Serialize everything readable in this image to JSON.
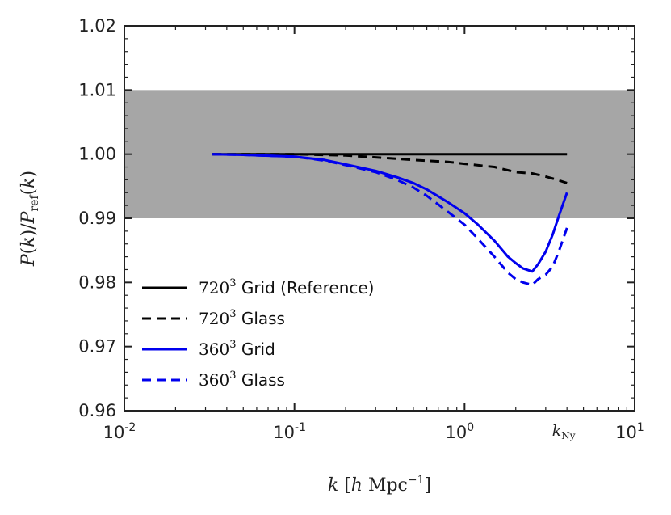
{
  "chart_data": {
    "type": "line",
    "title": "",
    "xlabel": "k [h Mpc^-1]",
    "ylabel": "P(k)/P_ref(k)",
    "xscale": "log",
    "xlim": [
      0.01,
      10
    ],
    "ylim": [
      0.96,
      1.02
    ],
    "x_ticks": [
      {
        "value": 0.01,
        "base": "10",
        "exp": "-2"
      },
      {
        "value": 0.1,
        "base": "10",
        "exp": "-1"
      },
      {
        "value": 1,
        "base": "10",
        "exp": "0"
      },
      {
        "value": 10,
        "base": "10",
        "exp": "1"
      }
    ],
    "y_ticks": [
      {
        "value": 0.96,
        "label": "0.96"
      },
      {
        "value": 0.97,
        "label": "0.97"
      },
      {
        "value": 0.98,
        "label": "0.98"
      },
      {
        "value": 0.99,
        "label": "0.99"
      },
      {
        "value": 1.0,
        "label": "1.00"
      },
      {
        "value": 1.01,
        "label": "1.01"
      },
      {
        "value": 1.02,
        "label": "1.02"
      }
    ],
    "band": {
      "y_low": 0.99,
      "y_high": 1.01,
      "color": "#a6a6a6"
    },
    "annotation": {
      "text": "k",
      "sub": "Ny",
      "x": 4.0
    },
    "series": [
      {
        "name": "720³ Grid (Reference)",
        "legend_math": "720",
        "legend_sup": "3",
        "legend_text": "Grid (Reference)",
        "color": "#000000",
        "dash": "solid",
        "x": [
          0.033,
          0.05,
          0.1,
          0.2,
          0.5,
          1.0,
          2.0,
          4.0
        ],
        "y": [
          1.0,
          1.0,
          1.0,
          1.0,
          1.0,
          1.0,
          1.0,
          1.0
        ]
      },
      {
        "name": "720³ Glass",
        "legend_math": "720",
        "legend_sup": "3",
        "legend_text": "Glass",
        "color": "#000000",
        "dash": "dashed",
        "x": [
          0.033,
          0.05,
          0.1,
          0.2,
          0.3,
          0.5,
          0.8,
          1.0,
          1.5,
          2.0,
          2.5,
          3.0,
          3.5,
          4.0
        ],
        "y": [
          1.0,
          1.0,
          1.0,
          0.9998,
          0.9995,
          0.9991,
          0.9988,
          0.9985,
          0.998,
          0.9972,
          0.997,
          0.9965,
          0.996,
          0.9955
        ]
      },
      {
        "name": "360³ Grid",
        "legend_math": "360",
        "legend_sup": "3",
        "legend_text": "Grid",
        "color": "#0000ee",
        "dash": "solid",
        "x": [
          0.033,
          0.05,
          0.1,
          0.15,
          0.2,
          0.3,
          0.4,
          0.5,
          0.6,
          0.8,
          1.0,
          1.2,
          1.5,
          1.8,
          2.0,
          2.2,
          2.5,
          2.7,
          3.0,
          3.3,
          3.6,
          4.0
        ],
        "y": [
          1.0,
          0.9999,
          0.9996,
          0.9991,
          0.9984,
          0.9974,
          0.9964,
          0.9955,
          0.9945,
          0.9925,
          0.9908,
          0.989,
          0.9865,
          0.984,
          0.983,
          0.9822,
          0.9817,
          0.9828,
          0.9848,
          0.9875,
          0.9905,
          0.994
        ]
      },
      {
        "name": "360³ Glass",
        "legend_math": "360",
        "legend_sup": "3",
        "legend_text": "Glass",
        "color": "#0000ee",
        "dash": "dashed",
        "x": [
          0.033,
          0.05,
          0.1,
          0.15,
          0.2,
          0.3,
          0.4,
          0.5,
          0.6,
          0.8,
          1.0,
          1.2,
          1.5,
          1.8,
          2.0,
          2.2,
          2.5,
          2.7,
          3.0,
          3.3,
          3.6,
          4.0
        ],
        "y": [
          1.0,
          0.9999,
          0.9996,
          0.999,
          0.9983,
          0.9972,
          0.996,
          0.9948,
          0.9935,
          0.991,
          0.989,
          0.9868,
          0.984,
          0.9815,
          0.9805,
          0.98,
          0.9796,
          0.9805,
          0.9812,
          0.9825,
          0.985,
          0.9885
        ]
      }
    ]
  }
}
